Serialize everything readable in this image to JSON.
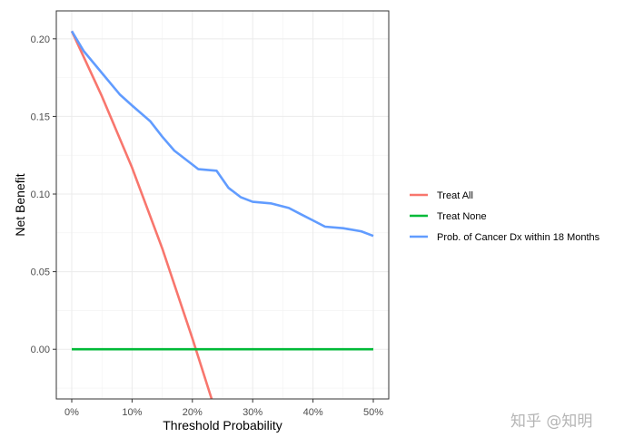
{
  "chart_data": {
    "type": "line",
    "xlabel": "Threshold Probability",
    "ylabel": "Net Benefit",
    "xlim": [
      0,
      0.5
    ],
    "ylim": [
      -0.032,
      0.218
    ],
    "x_ticks": [
      0,
      0.1,
      0.2,
      0.3,
      0.4,
      0.5
    ],
    "x_tick_labels": [
      "0%",
      "10%",
      "20%",
      "30%",
      "40%",
      "50%"
    ],
    "y_ticks": [
      0,
      0.05,
      0.1,
      0.15,
      0.2
    ],
    "y_tick_labels": [
      "0.00",
      "0.05",
      "0.10",
      "0.15",
      "0.20"
    ],
    "grid": true,
    "legend_position": "right",
    "series": [
      {
        "name": "Treat All",
        "color": "#F8766D",
        "x": [
          0,
          0.05,
          0.1,
          0.15,
          0.2,
          0.232
        ],
        "y": [
          0.205,
          0.163,
          0.117,
          0.065,
          0.007,
          -0.032
        ]
      },
      {
        "name": "Treat None",
        "color": "#00BA38",
        "x": [
          0,
          0.5
        ],
        "y": [
          0,
          0
        ]
      },
      {
        "name": "Prob. of Cancer Dx within 18 Months",
        "color": "#619CFF",
        "x": [
          0,
          0.02,
          0.05,
          0.08,
          0.1,
          0.13,
          0.15,
          0.17,
          0.2,
          0.21,
          0.24,
          0.26,
          0.28,
          0.3,
          0.33,
          0.36,
          0.38,
          0.4,
          0.42,
          0.45,
          0.48,
          0.5
        ],
        "y": [
          0.205,
          0.192,
          0.178,
          0.164,
          0.157,
          0.147,
          0.137,
          0.128,
          0.119,
          0.116,
          0.115,
          0.104,
          0.098,
          0.095,
          0.094,
          0.091,
          0.087,
          0.083,
          0.079,
          0.078,
          0.076,
          0.073
        ]
      }
    ]
  },
  "watermark": "知乎 @知明"
}
